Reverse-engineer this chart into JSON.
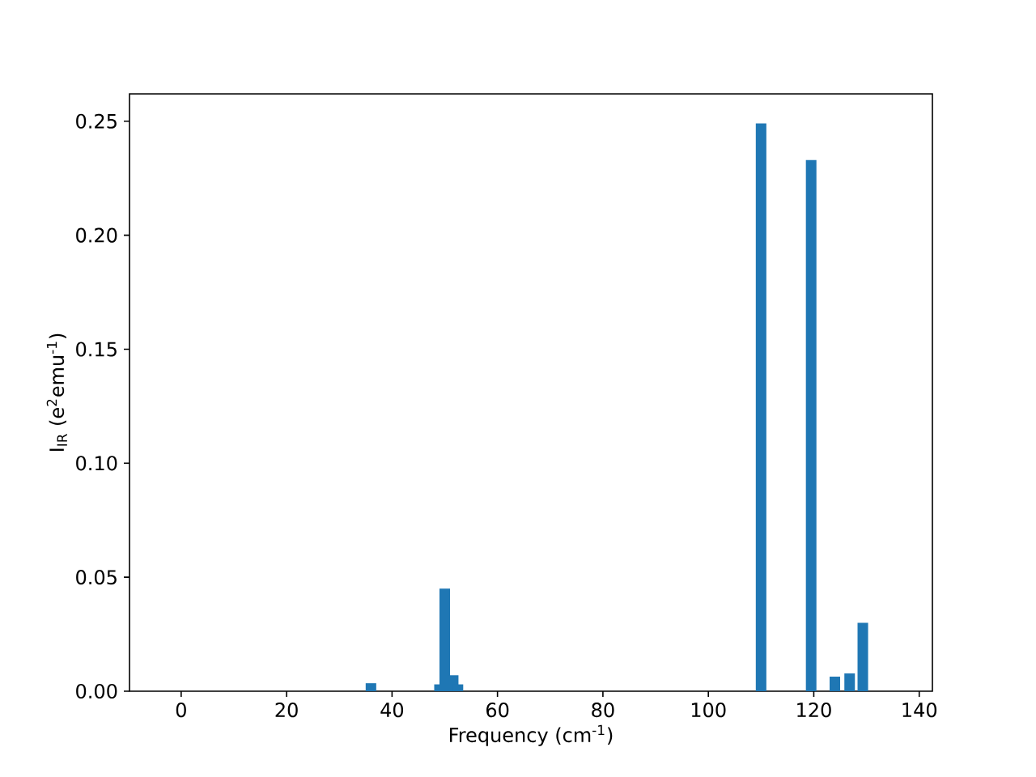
{
  "chart_data": {
    "type": "bar",
    "xlabel": "Frequency (cm$^{-1}$)",
    "ylabel": "I$_{IR}$ (e$^{2}$emu$^{-1}$)",
    "x": [
      36,
      49,
      50,
      51.6,
      52.5,
      110,
      119.5,
      124,
      126.8,
      129.3
    ],
    "values": [
      0.0035,
      0.003,
      0.045,
      0.007,
      0.003,
      0.249,
      0.233,
      0.0064,
      0.0078,
      0.03
    ],
    "color": "#1f77b4",
    "xlim": [
      -9.8,
      142.5
    ],
    "ylim": [
      0,
      0.262
    ],
    "xticks": [
      0,
      20,
      40,
      60,
      80,
      100,
      120,
      140
    ],
    "yticks": [
      {
        "value": 0,
        "label": "0.00"
      },
      {
        "value": 0.05,
        "label": "0.05"
      },
      {
        "value": 0.1,
        "label": "0.10"
      },
      {
        "value": 0.15,
        "label": "0.15"
      },
      {
        "value": 0.2,
        "label": "0.20"
      },
      {
        "value": 0.25,
        "label": "0.25"
      }
    ],
    "grid": false
  }
}
